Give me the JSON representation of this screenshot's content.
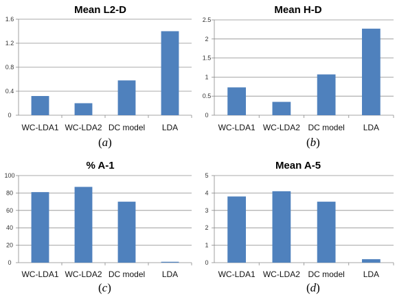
{
  "chart_data": [
    {
      "type": "bar",
      "title": "Mean L2-D",
      "categories": [
        "WC-LDA1",
        "WC-LDA2",
        "DC model",
        "LDA"
      ],
      "values": [
        0.32,
        0.2,
        0.58,
        1.4
      ],
      "ylim": [
        0,
        1.6
      ],
      "yticks": [
        "0",
        "0.4",
        "0.8",
        "1.2",
        "1.6"
      ],
      "caption": "a",
      "color": "#4f81bd",
      "grid": true
    },
    {
      "type": "bar",
      "title": "Mean H-D",
      "categories": [
        "WC-LDA1",
        "WC-LDA2",
        "DC model",
        "LDA"
      ],
      "values": [
        0.73,
        0.35,
        1.07,
        2.27
      ],
      "ylim": [
        0,
        2.5
      ],
      "yticks": [
        "0",
        "0.5",
        "1",
        "1.5",
        "2",
        "2.5"
      ],
      "caption": "b",
      "color": "#4f81bd",
      "grid": true
    },
    {
      "type": "bar",
      "title": "% A-1",
      "categories": [
        "WC-LDA1",
        "WC-LDA2",
        "DC model",
        "LDA"
      ],
      "values": [
        81,
        87,
        70,
        1
      ],
      "ylim": [
        0,
        100
      ],
      "yticks": [
        "0",
        "20",
        "40",
        "60",
        "80",
        "100"
      ],
      "caption": "c",
      "color": "#4f81bd",
      "grid": true
    },
    {
      "type": "bar",
      "title": "Mean A-5",
      "categories": [
        "WC-LDA1",
        "WC-LDA2",
        "DC model",
        "LDA"
      ],
      "values": [
        3.8,
        4.1,
        3.5,
        0.2
      ],
      "ylim": [
        0,
        5
      ],
      "yticks": [
        "0",
        "1",
        "2",
        "3",
        "4",
        "5"
      ],
      "caption": "d",
      "color": "#4f81bd",
      "grid": true
    }
  ]
}
